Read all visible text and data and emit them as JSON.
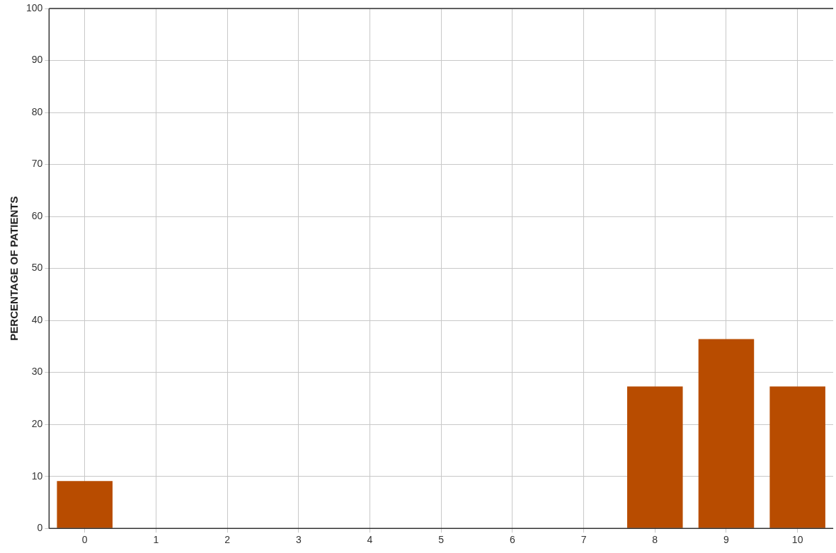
{
  "chart_data": {
    "type": "bar",
    "ylabel": "PERCENTAGE OF PATIENTS",
    "categories": [
      "0",
      "1",
      "2",
      "3",
      "4",
      "5",
      "6",
      "7",
      "8",
      "9",
      "10"
    ],
    "values": [
      9.1,
      0,
      0,
      0,
      0,
      0,
      0,
      0,
      27.3,
      36.4,
      27.3
    ],
    "color": "#b84c00",
    "ylim": [
      0,
      100
    ],
    "yticks": [
      0,
      10,
      20,
      30,
      40,
      50,
      60,
      70,
      80,
      90,
      100
    ],
    "grid": true
  }
}
